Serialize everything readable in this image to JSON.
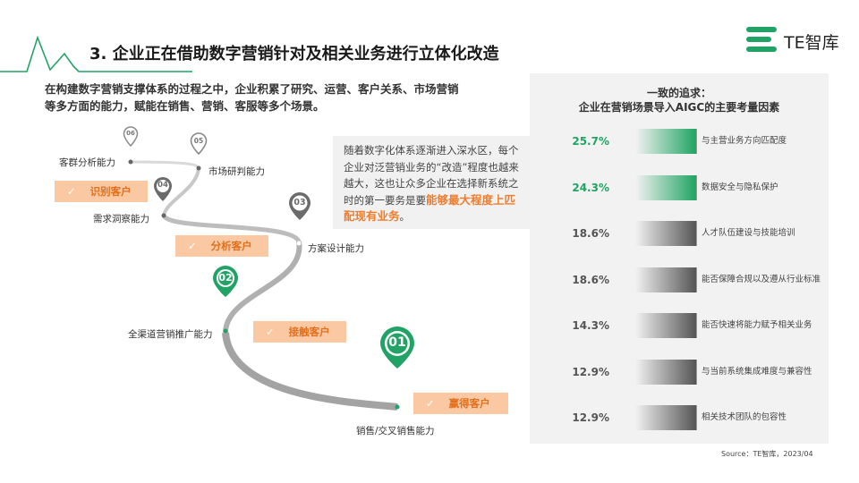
{
  "header": {
    "title": "3. 企业正在借助数字营销针对及相关业务进行立体化改造",
    "logo_text": "TE智库"
  },
  "intro": {
    "line1": "在构建数字营销支撑体系的过程之中，企业积累了研究、运营、客户关系、市场营销",
    "line2": "等多方面的能力，赋能在销售、营销、客服等多个场景。"
  },
  "callout": {
    "text": "随着数字化体系逐渐进入深水区，每个企业对泛营销业务的“改造”程度也越来越大，这也让众多企业在选择新系统之时的第一要务是要",
    "highlight": "能够最大程度上匹配现有业务",
    "end": "。"
  },
  "roadmap": {
    "milestones": [
      {
        "num": "06",
        "label": "客群分析能力"
      },
      {
        "num": "05",
        "label": "市场研判能力"
      },
      {
        "num": "04",
        "label": "需求洞察能力"
      },
      {
        "num": "03",
        "label": "方案设计能力"
      },
      {
        "num": "02",
        "label": "全渠道营销推广能力"
      },
      {
        "num": "01",
        "label": "销售/交叉销售能力"
      }
    ],
    "badges": [
      {
        "check": "✓",
        "label": "识别客户"
      },
      {
        "check": "✓",
        "label": "分析客户"
      },
      {
        "check": "✓",
        "label": "接触客户"
      },
      {
        "check": "✓",
        "label": "赢得客户"
      }
    ]
  },
  "panel": {
    "title1": "一致的追求：",
    "title2": "企业在营销场景导入AIGC的主要考量因素",
    "highlight_color": "#1fa463",
    "neutral_color": "#555555",
    "bars": [
      {
        "value_label": "25.7%",
        "value": 25.7,
        "label": "与主营业务方向匹配度",
        "highlight": true
      },
      {
        "value_label": "24.3%",
        "value": 24.3,
        "label": "数据安全与隐私保护",
        "highlight": true
      },
      {
        "value_label": "18.6%",
        "value": 18.6,
        "label": "人才队伍建设与技能培训",
        "highlight": false
      },
      {
        "value_label": "18.6%",
        "value": 18.6,
        "label": "能否保障合规以及遵从行业标准",
        "highlight": false
      },
      {
        "value_label": "14.3%",
        "value": 14.3,
        "label": "能否快速将能力赋予相关业务",
        "highlight": false
      },
      {
        "value_label": "12.9%",
        "value": 12.9,
        "label": "与当前系统集成难度与兼容性",
        "highlight": false
      },
      {
        "value_label": "12.9%",
        "value": 12.9,
        "label": "相关技术团队的包容性",
        "highlight": false
      }
    ]
  },
  "footer": {
    "source": "Source：TE智库，2023/04"
  }
}
